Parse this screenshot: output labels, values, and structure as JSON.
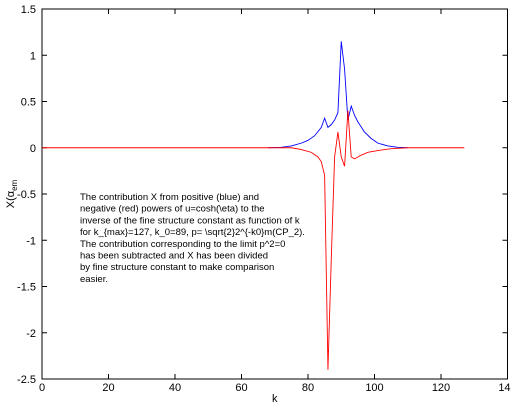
{
  "chart_data": {
    "type": "line",
    "xlabel": "k",
    "ylabel": "X(α",
    "ylabel_subscript": "em",
    "xlim": [
      0,
      140
    ],
    "ylim": [
      -2.5,
      1.5
    ],
    "xticks": [
      0,
      20,
      40,
      60,
      80,
      100,
      120,
      140
    ],
    "yticks": [
      -2.5,
      -2,
      -1.5,
      -1,
      -0.5,
      0,
      0.5,
      1,
      1.5
    ],
    "annotation": [
      "The contribution X from positive  (blue)  and",
      "negative (red) powers of u=cosh(\\eta)  to  the",
      "inverse of  the fine structure constant as function of k",
      "for k_{max}=127, k_0=89, p= \\sqrt{2}2^{-k0}m(CP_2).",
      "The contribution corresponding to the limit p^2=0",
      "has been subtracted and X has been divided",
      "by fine structure constant to make comparison",
      "easier."
    ],
    "series": [
      {
        "color": "#0000ff",
        "x": [
          68,
          72,
          75,
          78,
          80,
          82,
          84,
          85,
          86,
          87,
          88,
          89,
          90,
          91,
          92,
          93,
          94,
          95,
          97,
          99,
          101,
          104,
          107,
          110
        ],
        "values": [
          0,
          0.005,
          0.02,
          0.05,
          0.08,
          0.13,
          0.22,
          0.32,
          0.22,
          0.25,
          0.3,
          0.38,
          1.15,
          0.85,
          0.3,
          0.45,
          0.35,
          0.28,
          0.17,
          0.1,
          0.05,
          0.02,
          0.005,
          0
        ]
      },
      {
        "color": "#ff0000",
        "x": [
          0,
          75,
          78,
          81,
          83,
          84,
          85,
          86,
          87,
          88,
          89,
          90,
          91,
          92,
          93,
          94,
          96,
          98,
          101,
          105,
          110,
          127
        ],
        "values": [
          0,
          0,
          -0.02,
          -0.05,
          -0.1,
          -0.15,
          -0.3,
          -2.4,
          -1.2,
          -0.1,
          0.17,
          -0.1,
          -0.2,
          0.4,
          -0.1,
          -0.12,
          -0.08,
          -0.05,
          -0.03,
          -0.01,
          0,
          0
        ]
      }
    ]
  }
}
